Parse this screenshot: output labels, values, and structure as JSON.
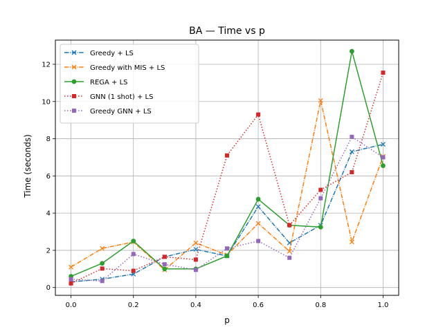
{
  "chart_data": {
    "type": "line",
    "title": "BA — Time vs p",
    "xlabel": "p",
    "ylabel": "Time (seconds)",
    "x": [
      0.0,
      0.1,
      0.2,
      0.3,
      0.4,
      0.5,
      0.6,
      0.7,
      0.8,
      0.9,
      1.0
    ],
    "xlim": [
      -0.05,
      1.05
    ],
    "ylim": [
      -0.42,
      13.3
    ],
    "xticks": [
      0.0,
      0.2,
      0.4,
      0.6,
      0.8,
      1.0
    ],
    "xtick_labels": [
      "0.0",
      "0.2",
      "0.4",
      "0.6",
      "0.8",
      "1.0"
    ],
    "yticks": [
      0,
      2,
      4,
      6,
      8,
      10,
      12
    ],
    "ytick_labels": [
      "0",
      "2",
      "4",
      "6",
      "8",
      "10",
      "12"
    ],
    "grid": true,
    "legend_position": "top-left",
    "series": [
      {
        "name": "Greedy + LS",
        "color": "#1f77b4",
        "dash": "dashdot",
        "marker": "x",
        "values": [
          0.3,
          0.45,
          0.72,
          1.65,
          2.05,
          1.7,
          4.35,
          2.4,
          3.35,
          7.3,
          7.7
        ]
      },
      {
        "name": "Greedy with MIS + LS",
        "color": "#ff7f0e",
        "dash": "dashdot",
        "marker": "x",
        "values": [
          1.1,
          2.1,
          2.45,
          0.95,
          2.4,
          1.75,
          3.45,
          1.95,
          10.05,
          2.45,
          7.05
        ]
      },
      {
        "name": "REGA + LS",
        "color": "#2ca02c",
        "dash": "solid",
        "marker": "circle",
        "values": [
          0.6,
          1.3,
          2.5,
          1.0,
          1.0,
          1.7,
          4.75,
          3.35,
          3.25,
          12.7,
          6.55
        ]
      },
      {
        "name": "GNN (1 shot) + LS",
        "color": "#d62728",
        "dash": "dotted",
        "marker": "square",
        "values": [
          0.22,
          1.02,
          0.9,
          1.65,
          1.5,
          7.1,
          9.3,
          3.35,
          5.25,
          6.2,
          11.55
        ]
      },
      {
        "name": "Greedy GNN + LS",
        "color": "#9467bd",
        "dash": "dotted",
        "marker": "square",
        "values": [
          0.45,
          0.35,
          1.8,
          1.25,
          0.95,
          2.1,
          2.5,
          1.6,
          4.8,
          8.1,
          7.0
        ]
      }
    ]
  }
}
